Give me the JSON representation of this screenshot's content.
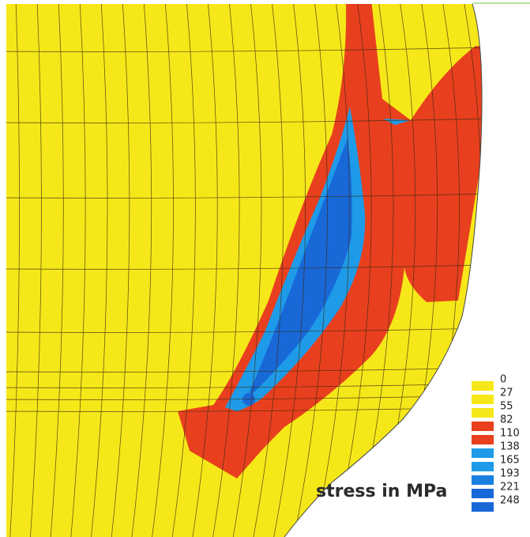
{
  "legend": {
    "title": "stress in MPa",
    "levels": [
      {
        "label": "0",
        "color": "#f6e818"
      },
      {
        "label": "27",
        "color": "#f6e818"
      },
      {
        "label": "55",
        "color": "#f6e818"
      },
      {
        "label": "82",
        "color": "#e8401e"
      },
      {
        "label": "110",
        "color": "#e8401e"
      },
      {
        "label": "138",
        "color": "#1e9be8"
      },
      {
        "label": "165",
        "color": "#1e9be8"
      },
      {
        "label": "193",
        "color": "#1a80e0"
      },
      {
        "label": "221",
        "color": "#1868d8"
      },
      {
        "label": "248",
        "color": "#1868d8"
      }
    ]
  }
}
